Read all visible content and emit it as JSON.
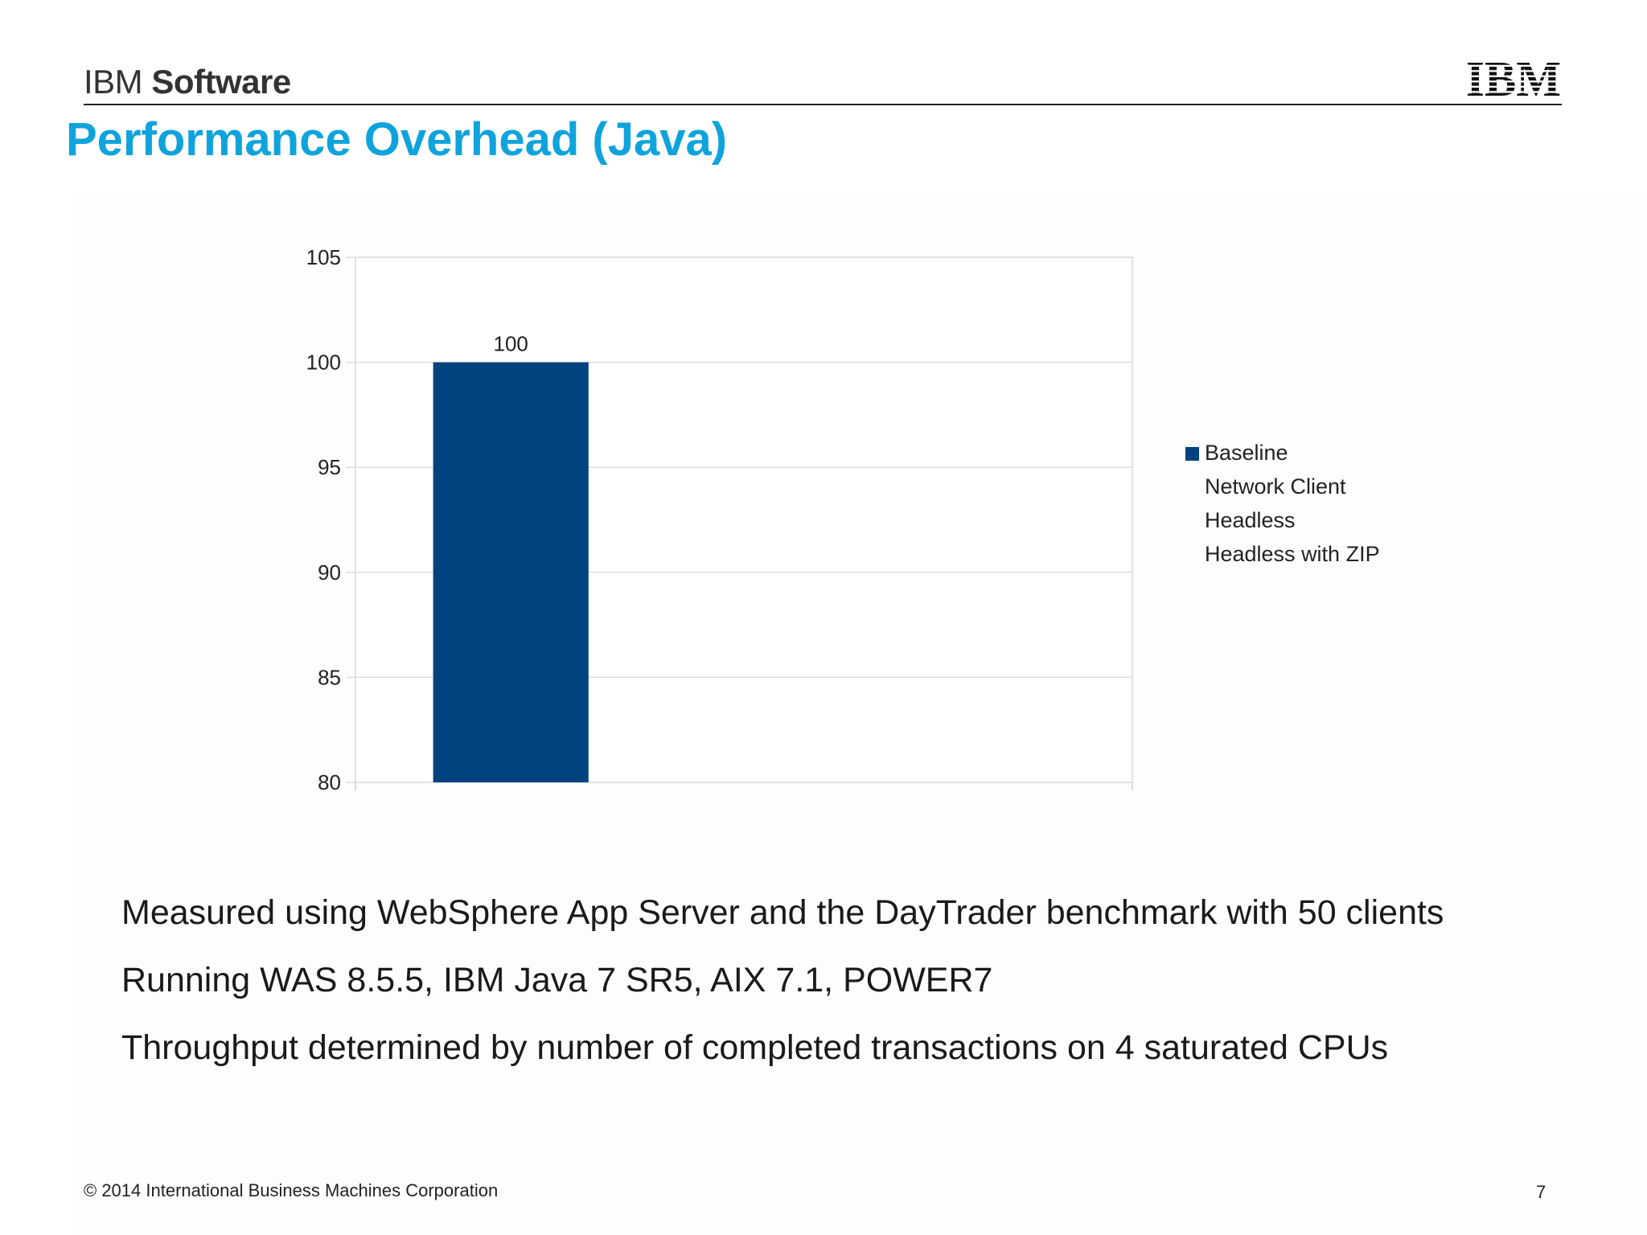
{
  "header": {
    "brand_ibm": "IBM",
    "brand_software": "Software",
    "logo_text": "IBM"
  },
  "slide": {
    "title": "Performance Overhead (Java)"
  },
  "chart_data": {
    "type": "bar",
    "categories": [
      ""
    ],
    "series": [
      {
        "name": "Baseline",
        "values": [
          100
        ],
        "color": "#00437f"
      },
      {
        "name": "Network Client",
        "values": [
          null
        ]
      },
      {
        "name": "Headless",
        "values": [
          null
        ]
      },
      {
        "name": "Headless with ZIP",
        "values": [
          null
        ]
      }
    ],
    "data_labels": [
      "100"
    ],
    "ylim": [
      80,
      105
    ],
    "yticks": [
      80,
      85,
      90,
      95,
      100,
      105
    ],
    "grid": true,
    "legend_position": "right",
    "title": "",
    "xlabel": "",
    "ylabel": ""
  },
  "bullets": [
    "Measured using WebSphere App Server and the DayTrader benchmark with 50 clients",
    "Running WAS 8.5.5, IBM Java 7 SR5, AIX 7.1, POWER7",
    "Throughput determined by number of completed transactions on 4 saturated CPUs"
  ],
  "footer": {
    "copyright": "© 2014 International Business Machines Corporation",
    "page_number": "7"
  },
  "colors": {
    "title": "#0fa3dc",
    "bar": "#00437f",
    "grid": "#dddddd"
  }
}
